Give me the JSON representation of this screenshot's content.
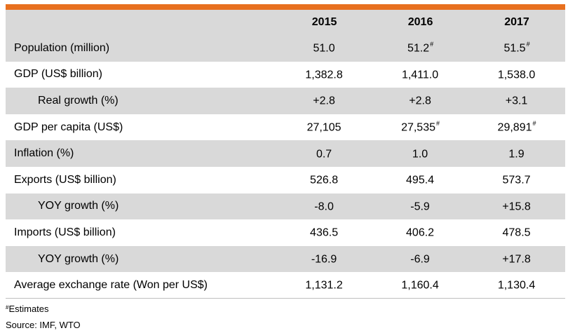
{
  "header": {
    "years": [
      "2015",
      "2016",
      "2017"
    ]
  },
  "rows": [
    {
      "label": "Population (million)",
      "values": [
        "51.0",
        "51.2",
        "51.5"
      ],
      "marks": [
        "",
        "#",
        "#"
      ]
    },
    {
      "label": "GDP (US$ billion)",
      "values": [
        "1,382.8",
        "1,411.0",
        "1,538.0"
      ],
      "marks": [
        "",
        "",
        ""
      ]
    },
    {
      "label": "Real growth (%)",
      "values": [
        "+2.8",
        "+2.8",
        "+3.1"
      ],
      "marks": [
        "",
        "",
        ""
      ]
    },
    {
      "label": "GDP per capita (US$)",
      "values": [
        "27,105",
        "27,535",
        "29,891"
      ],
      "marks": [
        "",
        "#",
        "#"
      ]
    },
    {
      "label": "Inflation (%)",
      "values": [
        "0.7",
        "1.0",
        "1.9"
      ],
      "marks": [
        "",
        "",
        ""
      ]
    },
    {
      "label": "Exports (US$ billion)",
      "values": [
        "526.8",
        "495.4",
        "573.7"
      ],
      "marks": [
        "",
        "",
        ""
      ]
    },
    {
      "label": "YOY growth (%)",
      "values": [
        "-8.0",
        "-5.9",
        "+15.8"
      ],
      "marks": [
        "",
        "",
        ""
      ]
    },
    {
      "label": "Imports (US$ billion)",
      "values": [
        "436.5",
        "406.2",
        "478.5"
      ],
      "marks": [
        "",
        "",
        ""
      ]
    },
    {
      "label": "YOY growth (%)",
      "values": [
        "-16.9",
        "-6.9",
        "+17.8"
      ],
      "marks": [
        "",
        "",
        ""
      ]
    },
    {
      "label": "Average exchange rate (Won per US$)",
      "values": [
        "1,131.2",
        "1,160.4",
        "1,130.4"
      ],
      "marks": [
        "",
        "",
        ""
      ]
    }
  ],
  "notes": {
    "estimates_mark": "#",
    "estimates": "Estimates",
    "source": "Source: IMF, WTO"
  },
  "colors": {
    "accent_bar": "#e8701f",
    "shade": "#d9d9d9"
  }
}
